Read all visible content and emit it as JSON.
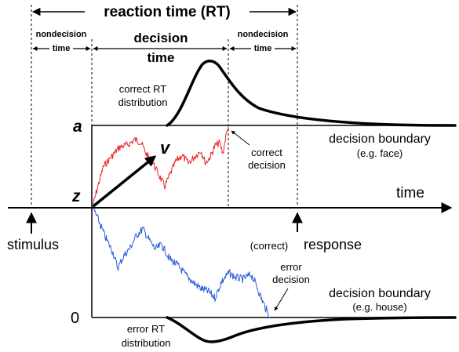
{
  "labels": {
    "rt_title": "reaction time (RT)",
    "nondecision_left_1": "nondecision",
    "nondecision_left_2": "time",
    "decision_time_1": "decision",
    "decision_time_2": "time",
    "nondecision_right_1": "nondecision",
    "nondecision_right_2": "time",
    "correct_rt_1": "correct RT",
    "correct_rt_2": "distribution",
    "a": "a",
    "v": "v",
    "z": "z",
    "zero": "0",
    "time_axis": "time",
    "stimulus": "stimulus",
    "correct_paren": "(correct)",
    "response": "response",
    "correct_decision_1": "correct",
    "correct_decision_2": "decision",
    "upper_boundary_1": "decision boundary",
    "upper_boundary_2": "(e.g. face)",
    "lower_boundary_1": "decision boundary",
    "lower_boundary_2": "(e.g. house)",
    "error_decision_1": "error",
    "error_decision_2": "decision",
    "error_rt_1": "error RT",
    "error_rt_2": "distribution"
  },
  "colors": {
    "correct_path": "#e8262a",
    "error_path": "#2a5fd6",
    "ink": "#000000"
  },
  "icons": {
    "drift_arrow": "drift-arrow-icon",
    "stimulus_arrow": "up-arrow-icon",
    "response_arrow": "up-arrow-icon"
  }
}
